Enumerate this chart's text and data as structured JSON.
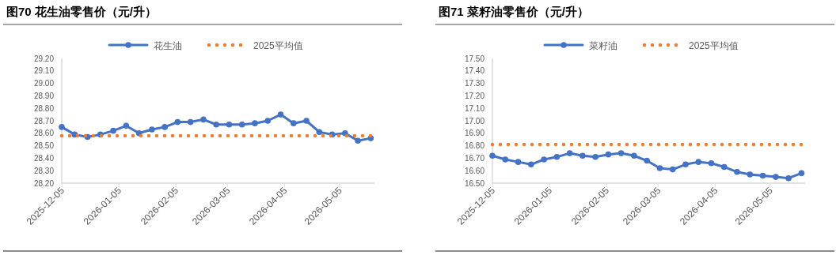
{
  "chart_data": [
    {
      "type": "line",
      "title": "图70 花生油零售价（元/升）",
      "legend": "top",
      "grid": false,
      "x": [
        "2025-12-05",
        "2025-12-12",
        "2025-12-19",
        "2025-12-26",
        "2026-01-02",
        "2026-01-09",
        "2026-01-16",
        "2026-01-23",
        "2026-01-30",
        "2026-02-06",
        "2026-02-13",
        "2026-02-20",
        "2026-02-27",
        "2026-03-06",
        "2026-03-13",
        "2026-03-20",
        "2026-03-27",
        "2026-04-03",
        "2026-04-10",
        "2026-04-17",
        "2026-04-24",
        "2026-05-01",
        "2026-05-08",
        "2026-05-15",
        "2026-05-22"
      ],
      "series": [
        {
          "name": "花生油",
          "color": "#4472c4",
          "marker": "circle",
          "line_style": "solid",
          "values": [
            28.65,
            28.59,
            28.57,
            28.59,
            28.62,
            28.66,
            28.6,
            28.63,
            28.65,
            28.69,
            28.69,
            28.71,
            28.67,
            28.67,
            28.67,
            28.68,
            28.7,
            28.75,
            28.68,
            28.7,
            28.61,
            28.59,
            28.6,
            28.54,
            28.56
          ]
        },
        {
          "name": "2025平均值",
          "color": "#ed7d31",
          "marker": "none",
          "line_style": "dotted",
          "values": [
            28.58,
            28.58,
            28.58,
            28.58,
            28.58,
            28.58,
            28.58,
            28.58,
            28.58,
            28.58,
            28.58,
            28.58,
            28.58,
            28.58,
            28.58,
            28.58,
            28.58,
            28.58,
            28.58,
            28.58,
            28.58,
            28.58,
            28.58,
            28.58,
            28.58
          ]
        }
      ],
      "xlim": [
        "2025-12-05",
        "2026-05-24"
      ],
      "xticks": [
        "2025-12-05",
        "2026-01-05",
        "2026-02-05",
        "2026-03-05",
        "2026-04-05",
        "2026-05-05"
      ],
      "ylim": [
        28.2,
        29.2
      ],
      "yticks": [
        {
          "value": 28.2,
          "label": "28.20"
        },
        {
          "value": 28.3,
          "label": "28.30"
        },
        {
          "value": 28.4,
          "label": "28.40"
        },
        {
          "value": 28.5,
          "label": "28.50"
        },
        {
          "value": 28.6,
          "label": "28.60"
        },
        {
          "value": 28.7,
          "label": "28.70"
        },
        {
          "value": 28.8,
          "label": "28.80"
        },
        {
          "value": 28.9,
          "label": "28.90"
        },
        {
          "value": 29.0,
          "label": "29.00"
        },
        {
          "value": 29.1,
          "label": "29.10"
        },
        {
          "value": 29.2,
          "label": "29.20"
        }
      ]
    },
    {
      "type": "line",
      "title": "图71 菜籽油零售价（元/升）",
      "legend": "top",
      "grid": false,
      "x": [
        "2025-12-05",
        "2025-12-12",
        "2025-12-19",
        "2025-12-26",
        "2026-01-02",
        "2026-01-09",
        "2026-01-16",
        "2026-01-23",
        "2026-01-30",
        "2026-02-06",
        "2026-02-13",
        "2026-02-20",
        "2026-02-27",
        "2026-03-06",
        "2026-03-13",
        "2026-03-20",
        "2026-03-27",
        "2026-04-03",
        "2026-04-10",
        "2026-04-17",
        "2026-04-24",
        "2026-05-01",
        "2026-05-08",
        "2026-05-15",
        "2026-05-22"
      ],
      "series": [
        {
          "name": "菜籽油",
          "color": "#4472c4",
          "marker": "circle",
          "line_style": "solid",
          "values": [
            16.72,
            16.69,
            16.67,
            16.65,
            16.69,
            16.71,
            16.74,
            16.72,
            16.71,
            16.73,
            16.74,
            16.72,
            16.68,
            16.62,
            16.61,
            16.65,
            16.67,
            16.66,
            16.63,
            16.59,
            16.57,
            16.56,
            16.55,
            16.54,
            16.58
          ]
        },
        {
          "name": "2025平均值",
          "color": "#ed7d31",
          "marker": "none",
          "line_style": "dotted",
          "values": [
            16.81,
            16.81,
            16.81,
            16.81,
            16.81,
            16.81,
            16.81,
            16.81,
            16.81,
            16.81,
            16.81,
            16.81,
            16.81,
            16.81,
            16.81,
            16.81,
            16.81,
            16.81,
            16.81,
            16.81,
            16.81,
            16.81,
            16.81,
            16.81,
            16.81
          ]
        }
      ],
      "xlim": [
        "2025-12-05",
        "2026-05-24"
      ],
      "xticks": [
        "2025-12-05",
        "2026-01-05",
        "2026-02-05",
        "2026-03-05",
        "2026-04-05",
        "2026-05-05"
      ],
      "ylim": [
        16.5,
        17.5
      ],
      "yticks": [
        {
          "value": 16.5,
          "label": "16.50"
        },
        {
          "value": 16.6,
          "label": "16.60"
        },
        {
          "value": 16.7,
          "label": "16.70"
        },
        {
          "value": 16.8,
          "label": "16.80"
        },
        {
          "value": 16.9,
          "label": "16.90"
        },
        {
          "value": 17.0,
          "label": "17.00"
        },
        {
          "value": 17.1,
          "label": "17.10"
        },
        {
          "value": 17.2,
          "label": "17.20"
        },
        {
          "value": 17.3,
          "label": "17.30"
        },
        {
          "value": 17.4,
          "label": "17.40"
        },
        {
          "value": 17.5,
          "label": "17.50"
        }
      ]
    }
  ]
}
